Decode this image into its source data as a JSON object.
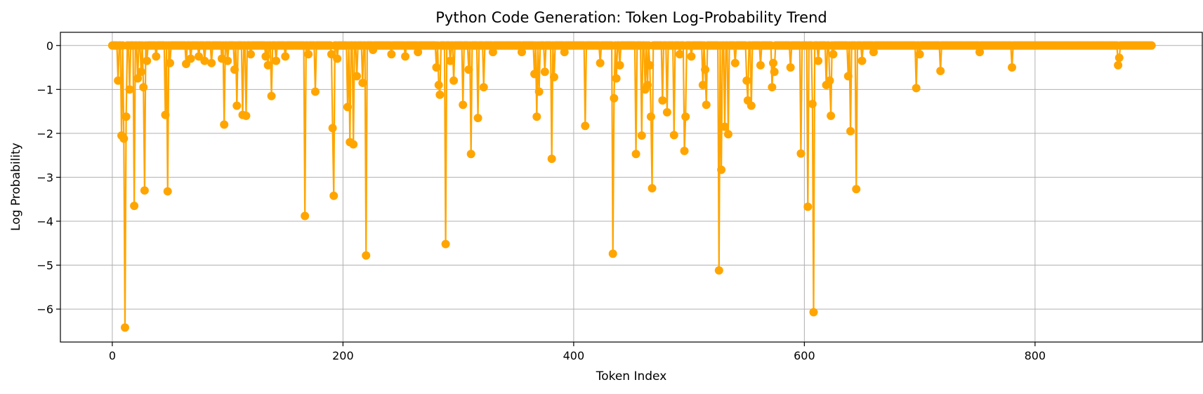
{
  "chart_data": {
    "type": "line",
    "title": "Python Code Generation: Token Log-Probability Trend",
    "xlabel": "Token Index",
    "ylabel": "Log Probability",
    "xlim": [
      -45,
      945
    ],
    "ylim": [
      -6.75,
      0.3
    ],
    "xticks": [
      0,
      200,
      400,
      600,
      800
    ],
    "xtick_labels": [
      "0",
      "200",
      "400",
      "600",
      "800"
    ],
    "yticks": [
      0,
      -1,
      -2,
      -3,
      -4,
      -5,
      -6
    ],
    "ytick_labels": [
      "0",
      "−1",
      "−2",
      "−3",
      "−4",
      "−5",
      "−6"
    ],
    "grid": true,
    "series": [
      {
        "color": "#FFA500",
        "marker": "circle",
        "baseline": 0,
        "n_points": 902,
        "x_start": 0,
        "x_end": 901,
        "dips": [
          [
            5,
            -0.8
          ],
          [
            8,
            -2.05
          ],
          [
            10,
            -2.12
          ],
          [
            11,
            -6.42
          ],
          [
            12,
            -1.62
          ],
          [
            15,
            -1.0
          ],
          [
            19,
            -3.65
          ],
          [
            22,
            -0.75
          ],
          [
            25,
            -0.6
          ],
          [
            27,
            -0.95
          ],
          [
            28,
            -3.3
          ],
          [
            30,
            -0.35
          ],
          [
            38,
            -0.25
          ],
          [
            46,
            -1.58
          ],
          [
            48,
            -3.32
          ],
          [
            50,
            -0.4
          ],
          [
            64,
            -0.42
          ],
          [
            68,
            -0.3
          ],
          [
            75,
            -0.25
          ],
          [
            80,
            -0.35
          ],
          [
            86,
            -0.4
          ],
          [
            95,
            -0.3
          ],
          [
            97,
            -1.8
          ],
          [
            100,
            -0.35
          ],
          [
            106,
            -0.55
          ],
          [
            108,
            -1.37
          ],
          [
            113,
            -1.58
          ],
          [
            116,
            -1.6
          ],
          [
            120,
            -0.2
          ],
          [
            133,
            -0.25
          ],
          [
            135,
            -0.45
          ],
          [
            138,
            -1.15
          ],
          [
            142,
            -0.35
          ],
          [
            150,
            -0.25
          ],
          [
            167,
            -3.88
          ],
          [
            170,
            -0.2
          ],
          [
            176,
            -1.05
          ],
          [
            190,
            -0.2
          ],
          [
            191,
            -1.88
          ],
          [
            192,
            -3.42
          ],
          [
            195,
            -0.3
          ],
          [
            204,
            -1.4
          ],
          [
            206,
            -2.2
          ],
          [
            209,
            -2.25
          ],
          [
            212,
            -0.7
          ],
          [
            217,
            -0.85
          ],
          [
            220,
            -4.78
          ],
          [
            226,
            -0.1
          ],
          [
            242,
            -0.2
          ],
          [
            254,
            -0.25
          ],
          [
            265,
            -0.15
          ],
          [
            281,
            -0.5
          ],
          [
            283,
            -0.9
          ],
          [
            284,
            -1.12
          ],
          [
            289,
            -4.52
          ],
          [
            293,
            -0.35
          ],
          [
            296,
            -0.8
          ],
          [
            304,
            -1.35
          ],
          [
            309,
            -0.55
          ],
          [
            311,
            -2.47
          ],
          [
            317,
            -1.65
          ],
          [
            322,
            -0.95
          ],
          [
            330,
            -0.15
          ],
          [
            355,
            -0.15
          ],
          [
            366,
            -0.65
          ],
          [
            368,
            -1.62
          ],
          [
            370,
            -1.05
          ],
          [
            375,
            -0.6
          ],
          [
            381,
            -2.58
          ],
          [
            383,
            -0.72
          ],
          [
            392,
            -0.15
          ],
          [
            410,
            -1.83
          ],
          [
            423,
            -0.4
          ],
          [
            434,
            -4.74
          ],
          [
            435,
            -1.2
          ],
          [
            437,
            -0.75
          ],
          [
            440,
            -0.45
          ],
          [
            454,
            -2.47
          ],
          [
            459,
            -2.05
          ],
          [
            462,
            -1.0
          ],
          [
            464,
            -0.9
          ],
          [
            466,
            -0.45
          ],
          [
            467,
            -1.62
          ],
          [
            468,
            -3.25
          ],
          [
            477,
            -1.25
          ],
          [
            481,
            -1.52
          ],
          [
            487,
            -2.04
          ],
          [
            492,
            -0.2
          ],
          [
            496,
            -2.4
          ],
          [
            497,
            -1.62
          ],
          [
            502,
            -0.25
          ],
          [
            512,
            -0.9
          ],
          [
            514,
            -0.55
          ],
          [
            515,
            -1.35
          ],
          [
            526,
            -5.12
          ],
          [
            528,
            -2.83
          ],
          [
            531,
            -1.85
          ],
          [
            534,
            -2.02
          ],
          [
            540,
            -0.4
          ],
          [
            550,
            -0.8
          ],
          [
            551,
            -1.25
          ],
          [
            554,
            -1.37
          ],
          [
            562,
            -0.45
          ],
          [
            572,
            -0.95
          ],
          [
            573,
            -0.4
          ],
          [
            574,
            -0.6
          ],
          [
            588,
            -0.5
          ],
          [
            597,
            -2.46
          ],
          [
            603,
            -3.67
          ],
          [
            607,
            -1.33
          ],
          [
            608,
            -6.07
          ],
          [
            612,
            -0.35
          ],
          [
            619,
            -0.9
          ],
          [
            622,
            -0.8
          ],
          [
            623,
            -1.6
          ],
          [
            625,
            -0.2
          ],
          [
            638,
            -0.7
          ],
          [
            640,
            -1.95
          ],
          [
            645,
            -3.27
          ],
          [
            650,
            -0.35
          ],
          [
            660,
            -0.15
          ],
          [
            697,
            -0.97
          ],
          [
            700,
            -0.2
          ],
          [
            718,
            -0.58
          ],
          [
            752,
            -0.15
          ],
          [
            780,
            -0.5
          ],
          [
            872,
            -0.45
          ],
          [
            873,
            -0.28
          ]
        ]
      }
    ]
  }
}
